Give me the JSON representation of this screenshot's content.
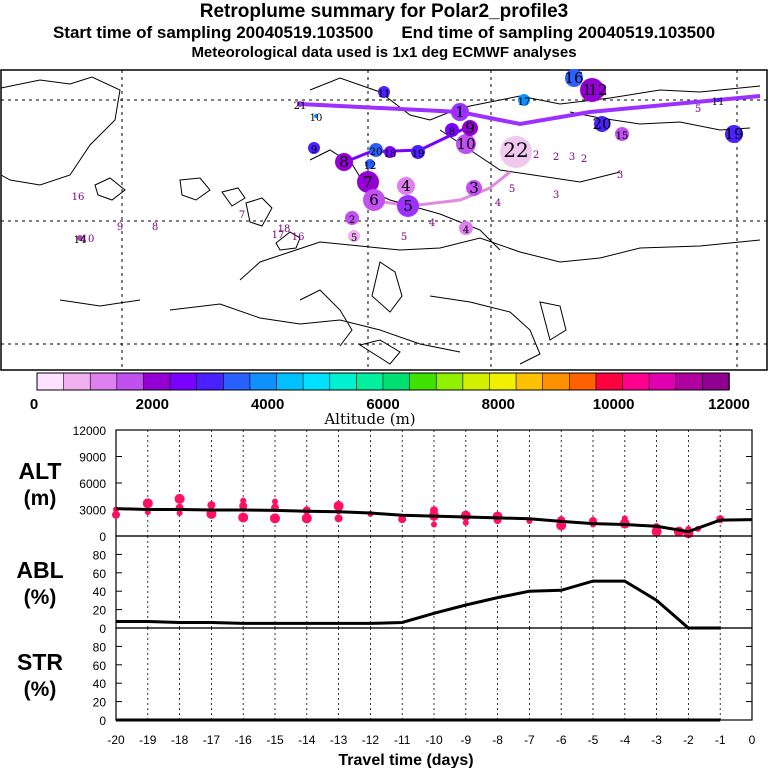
{
  "header": {
    "title": "Retroplume summary for Polar2_profile3",
    "start_label": "Start time of sampling 20040519.103500",
    "end_label": "End time of sampling 20040519.103500",
    "met_label": "Meteorological data used is 1x1 deg ECMWF analyses"
  },
  "map": {
    "description_labels": [
      "22",
      "21",
      "20",
      "19",
      "18",
      "17",
      "16",
      "15",
      "14",
      "13",
      "12",
      "11",
      "10",
      "9",
      "8",
      "7",
      "6",
      "5",
      "4",
      "3",
      "2",
      "1"
    ],
    "track_colors": {
      "high": "#9b30ff",
      "low": "#e08be0"
    }
  },
  "colorbar": {
    "title": "Altitude (m)",
    "tick_labels": [
      "0",
      "2000",
      "4000",
      "6000",
      "8000",
      "10000",
      "12000"
    ],
    "ticks": [
      0,
      2000,
      4000,
      6000,
      8000,
      10000,
      12000
    ],
    "colors": [
      "#ffe0ff",
      "#f0b0f0",
      "#e080f0",
      "#c050f0",
      "#9400d3",
      "#7a00ff",
      "#4a20ff",
      "#2a60ff",
      "#1090ff",
      "#00c0ff",
      "#00e0ff",
      "#00f0d0",
      "#00f0a0",
      "#00e070",
      "#40e000",
      "#90f000",
      "#d0f000",
      "#f0f000",
      "#ffc000",
      "#ff9000",
      "#ff6000",
      "#ff0040",
      "#ff0090",
      "#e000b0",
      "#b000a0",
      "#900090"
    ]
  },
  "chart_data": [
    {
      "type": "line",
      "name": "ALT",
      "ylabel": "ALT\n(m)",
      "ylabel_line1": "ALT",
      "ylabel_line2": "(m)",
      "ylim": [
        0,
        12000
      ],
      "yticks": [
        0,
        3000,
        6000,
        9000,
        12000
      ],
      "ytick_labels": [
        "0",
        "3000",
        "6000",
        "9000",
        "12000"
      ],
      "x": [
        -20,
        -19,
        -18,
        -17,
        -16,
        -15,
        -14,
        -13,
        -12,
        -11,
        -10,
        -9,
        -8,
        -7,
        -6,
        -5,
        -4,
        -3,
        -2,
        -1,
        0
      ],
      "values": [
        3100,
        3000,
        3000,
        2950,
        2950,
        2900,
        2800,
        2750,
        2600,
        2350,
        2250,
        2150,
        2050,
        1950,
        1650,
        1400,
        1300,
        1100,
        500,
        1800,
        1850
      ],
      "scatter_points": [
        {
          "x": -20,
          "y": 3000
        },
        {
          "x": -20,
          "y": 2400
        },
        {
          "x": -19,
          "y": 3700
        },
        {
          "x": -19,
          "y": 2700
        },
        {
          "x": -18,
          "y": 3200
        },
        {
          "x": -18,
          "y": 4200
        },
        {
          "x": -18,
          "y": 2600
        },
        {
          "x": -17,
          "y": 3500
        },
        {
          "x": -17,
          "y": 2500
        },
        {
          "x": -17,
          "y": 2900
        },
        {
          "x": -16,
          "y": 3400
        },
        {
          "x": -16,
          "y": 2100
        },
        {
          "x": -16,
          "y": 4000
        },
        {
          "x": -15,
          "y": 3200
        },
        {
          "x": -15,
          "y": 2000
        },
        {
          "x": -15,
          "y": 3900
        },
        {
          "x": -14,
          "y": 2900
        },
        {
          "x": -14,
          "y": 2000
        },
        {
          "x": -13,
          "y": 2800
        },
        {
          "x": -13,
          "y": 2000
        },
        {
          "x": -13,
          "y": 3400
        },
        {
          "x": -12,
          "y": 2500
        },
        {
          "x": -11,
          "y": 1900
        },
        {
          "x": -10,
          "y": 2300
        },
        {
          "x": -10,
          "y": 1300
        },
        {
          "x": -10,
          "y": 2900
        },
        {
          "x": -9,
          "y": 2300
        },
        {
          "x": -9,
          "y": 1500
        },
        {
          "x": -8,
          "y": 1800
        },
        {
          "x": -8,
          "y": 2200
        },
        {
          "x": -7,
          "y": 1700
        },
        {
          "x": -6,
          "y": 1800
        },
        {
          "x": -6,
          "y": 1200
        },
        {
          "x": -5,
          "y": 1300
        },
        {
          "x": -5,
          "y": 1700
        },
        {
          "x": -4,
          "y": 1400
        },
        {
          "x": -4,
          "y": 2000
        },
        {
          "x": -3,
          "y": 1000
        },
        {
          "x": -3,
          "y": 500
        },
        {
          "x": -2,
          "y": 800
        },
        {
          "x": -2,
          "y": 500
        },
        {
          "x": -2,
          "y": 300
        },
        {
          "x": -1.7,
          "y": 800
        },
        {
          "x": -1,
          "y": 1900
        },
        {
          "x": -2.3,
          "y": 500
        }
      ]
    },
    {
      "type": "line",
      "name": "ABL",
      "ylabel_line1": "ABL",
      "ylabel_line2": "(%)",
      "ylim": [
        0,
        100
      ],
      "yticks": [
        0,
        20,
        40,
        60,
        80
      ],
      "ytick_labels": [
        "0",
        "20",
        "40",
        "60",
        "80"
      ],
      "x": [
        -20,
        -19,
        -18,
        -17,
        -16,
        -15,
        -14,
        -13,
        -12,
        -11,
        -10,
        -9,
        -8,
        -7,
        -6,
        -5,
        -4,
        -3,
        -2,
        -1
      ],
      "values": [
        7,
        7,
        6,
        6,
        5,
        5,
        5,
        5,
        5,
        6,
        16,
        25,
        33,
        40,
        41,
        51,
        51,
        30,
        0,
        0
      ]
    },
    {
      "type": "line",
      "name": "STR",
      "ylabel_line1": "STR",
      "ylabel_line2": "(%)",
      "ylim": [
        0,
        100
      ],
      "yticks": [
        0,
        20,
        40,
        60,
        80
      ],
      "ytick_labels": [
        "0",
        "20",
        "40",
        "60",
        "80"
      ],
      "x": [
        -20,
        -1
      ],
      "values": [
        0,
        0
      ],
      "xlabel": "Travel time (days)",
      "xticks": [
        -20,
        -19,
        -18,
        -17,
        -16,
        -15,
        -14,
        -13,
        -12,
        -11,
        -10,
        -9,
        -8,
        -7,
        -6,
        -5,
        -4,
        -3,
        -2,
        -1,
        0
      ],
      "xtick_labels": [
        "-20",
        "-19",
        "-18",
        "-17",
        "-16",
        "-15",
        "-14",
        "-13",
        "-12",
        "-11",
        "-10",
        "-9",
        "-8",
        "-7",
        "-6",
        "-5",
        "-4",
        "-3",
        "-2",
        "-1",
        "0"
      ]
    }
  ]
}
